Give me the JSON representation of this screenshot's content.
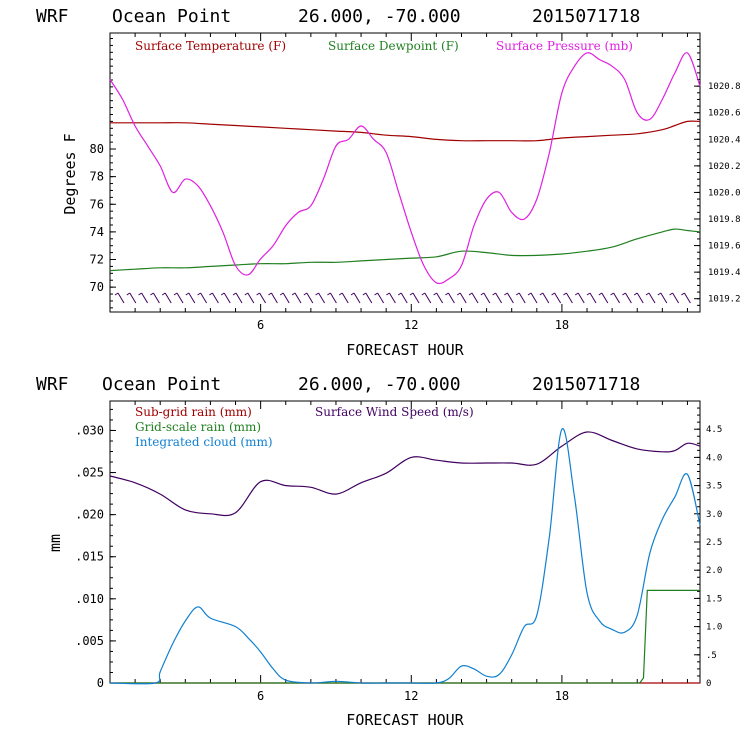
{
  "chart_data": [
    {
      "type": "line",
      "header": {
        "model": "WRF",
        "location": "Ocean Point",
        "coords": "26.000, -70.000",
        "run": "2015071718"
      },
      "xlabel": "FORECAST HOUR",
      "ylabel": "Degrees F",
      "xlim": [
        0,
        23.5
      ],
      "ylim": [
        68.2,
        88.4
      ],
      "x_ticks": [
        6,
        12,
        18
      ],
      "x_tick_labels": [
        "6",
        "12",
        "18"
      ],
      "y_ticks": [
        70,
        72,
        74,
        76,
        78,
        80
      ],
      "y_tick_labels": [
        "70",
        "72",
        "74",
        "76",
        "78",
        "80"
      ],
      "y2lim": [
        1019.1,
        1021.2
      ],
      "y2_ticks": [
        1019.2,
        1019.4,
        1019.6,
        1019.8,
        1020.0,
        1020.2,
        1020.4,
        1020.6,
        1020.8
      ],
      "y2_tick_labels": [
        "1019.2",
        "1019.4",
        "1019.6",
        "1019.8",
        "1020.0",
        "1020.2",
        "1020.4",
        "1020.6",
        "1020.8"
      ],
      "legend": [
        "Surface Temperature (F)",
        "Surface Dewpoint (F)",
        "Surface Pressure (mb)"
      ],
      "colors": {
        "temp": "#a00000",
        "dew": "#208020",
        "pres": "#e020e0",
        "wind_barbs": "#400060"
      },
      "series": [
        {
          "name": "Surface Temperature (F)",
          "axis": "left",
          "x": [
            0,
            1,
            2,
            3,
            4,
            5,
            6,
            7,
            8,
            9,
            10,
            11,
            12,
            13,
            14,
            15,
            16,
            17,
            18,
            19,
            20,
            21,
            22,
            22.5,
            23,
            23.5
          ],
          "y": [
            81.9,
            81.9,
            81.9,
            81.9,
            81.8,
            81.7,
            81.6,
            81.5,
            81.4,
            81.3,
            81.2,
            81.0,
            80.9,
            80.7,
            80.6,
            80.6,
            80.6,
            80.6,
            80.8,
            80.9,
            81.0,
            81.1,
            81.4,
            81.7,
            82.0,
            82.0
          ]
        },
        {
          "name": "Surface Dewpoint (F)",
          "axis": "left",
          "x": [
            0,
            1,
            2,
            3,
            4,
            5,
            6,
            7,
            8,
            9,
            10,
            11,
            12,
            13,
            14,
            15,
            16,
            17,
            18,
            19,
            20,
            21,
            22,
            22.5,
            23,
            23.5
          ],
          "y": [
            71.2,
            71.3,
            71.4,
            71.4,
            71.5,
            71.6,
            71.7,
            71.7,
            71.8,
            71.8,
            71.9,
            72.0,
            72.1,
            72.2,
            72.6,
            72.5,
            72.3,
            72.3,
            72.4,
            72.6,
            72.9,
            73.5,
            74.0,
            74.2,
            74.1,
            74.0
          ]
        },
        {
          "name": "Surface Pressure (mb)",
          "axis": "right",
          "x": [
            0,
            0.5,
            1,
            1.5,
            2,
            2.5,
            3,
            3.5,
            4,
            4.5,
            5,
            5.5,
            6,
            6.5,
            7,
            7.5,
            8,
            8.5,
            9,
            9.5,
            10,
            10.5,
            11,
            11.5,
            12,
            12.5,
            13,
            13.5,
            14,
            14.5,
            15,
            15.5,
            16,
            16.5,
            17,
            17.5,
            18,
            18.5,
            19,
            19.5,
            20,
            20.5,
            21,
            21.5,
            22,
            22.5,
            23,
            23.5
          ],
          "y": [
            1020.85,
            1020.7,
            1020.5,
            1020.35,
            1020.2,
            1020.0,
            1020.1,
            1020.05,
            1019.9,
            1019.7,
            1019.45,
            1019.38,
            1019.5,
            1019.6,
            1019.75,
            1019.85,
            1019.9,
            1020.1,
            1020.35,
            1020.4,
            1020.5,
            1020.4,
            1020.3,
            1020.0,
            1019.7,
            1019.45,
            1019.32,
            1019.35,
            1019.45,
            1019.75,
            1019.95,
            1020.0,
            1019.85,
            1019.8,
            1019.95,
            1020.3,
            1020.75,
            1020.95,
            1021.05,
            1021.0,
            1020.95,
            1020.85,
            1020.6,
            1020.55,
            1020.7,
            1020.9,
            1021.05,
            1020.8
          ]
        }
      ]
    },
    {
      "type": "line",
      "header": {
        "model": "WRF",
        "location": "Ocean Point",
        "coords": "26.000, -70.000",
        "run": "2015071718"
      },
      "xlabel": "FORECAST HOUR",
      "ylabel": "mm",
      "xlim": [
        0,
        23.5
      ],
      "ylim": [
        0,
        0.0335
      ],
      "x_ticks": [
        6,
        12,
        18
      ],
      "x_tick_labels": [
        "6",
        "12",
        "18"
      ],
      "y_ticks": [
        0,
        0.005,
        0.01,
        0.015,
        0.02,
        0.025,
        0.03
      ],
      "y_tick_labels": [
        "0",
        ".005",
        ".010",
        ".015",
        ".020",
        ".025",
        ".030"
      ],
      "y2lim": [
        0,
        5.0
      ],
      "y2_ticks": [
        0,
        0.5,
        1.0,
        1.5,
        2.0,
        2.5,
        3.0,
        3.5,
        4.0,
        4.5
      ],
      "y2_tick_labels": [
        "0",
        ".5",
        "1.0",
        "1.5",
        "2.0",
        "2.5",
        "3.0",
        "3.5",
        "4.0",
        "4.5"
      ],
      "legend": [
        "Sub-grid rain (mm)",
        "Surface Wind Speed (m/s)",
        "Grid-scale rain (mm)",
        "Integrated cloud (mm)"
      ],
      "colors": {
        "subgrid": "#a00000",
        "wind": "#400060",
        "grid": "#208020",
        "cloud": "#1080d0"
      },
      "series": [
        {
          "name": "Sub-grid rain (mm)",
          "axis": "left",
          "x": [
            0,
            23.5
          ],
          "y": [
            0,
            0
          ]
        },
        {
          "name": "Surface Wind Speed (m/s)",
          "axis": "right",
          "x": [
            0,
            1,
            2,
            3,
            4,
            5,
            6,
            7,
            8,
            9,
            10,
            11,
            12,
            13,
            14,
            15,
            16,
            17,
            18,
            19,
            20,
            21,
            22,
            22.5,
            23,
            23.5
          ],
          "y": [
            3.67,
            3.55,
            3.35,
            3.07,
            3.0,
            3.02,
            3.57,
            3.5,
            3.47,
            3.35,
            3.55,
            3.72,
            4.0,
            3.95,
            3.9,
            3.9,
            3.9,
            3.88,
            4.2,
            4.45,
            4.3,
            4.15,
            4.1,
            4.12,
            4.25,
            4.2
          ]
        },
        {
          "name": "Grid-scale rain (mm)",
          "axis": "left",
          "x": [
            0,
            21.1,
            21.25,
            21.4,
            23.5
          ],
          "y": [
            0,
            0,
            0.0006,
            0.011,
            0.011
          ]
        },
        {
          "name": "Integrated cloud (mm)",
          "axis": "right",
          "x": [
            0,
            1.8,
            2,
            2.5,
            3,
            3.5,
            4,
            5,
            5.5,
            6,
            6.5,
            7,
            8,
            9,
            10,
            11,
            12,
            13,
            13.5,
            14,
            14.5,
            15,
            15.5,
            16,
            16.5,
            17,
            17.5,
            18,
            18.5,
            19,
            19.5,
            20,
            20.5,
            21,
            21.5,
            22,
            22.5,
            23,
            23.5
          ],
          "y": [
            0,
            0,
            0.2,
            0.7,
            1.1,
            1.35,
            1.15,
            1.0,
            0.8,
            0.55,
            0.25,
            0.05,
            0,
            0.03,
            0,
            0,
            0,
            0,
            0.08,
            0.3,
            0.25,
            0.12,
            0.15,
            0.5,
            1.0,
            1.2,
            2.6,
            4.5,
            3.3,
            1.6,
            1.1,
            0.95,
            0.9,
            1.2,
            2.3,
            2.9,
            3.3,
            3.7,
            2.8
          ]
        }
      ]
    }
  ]
}
